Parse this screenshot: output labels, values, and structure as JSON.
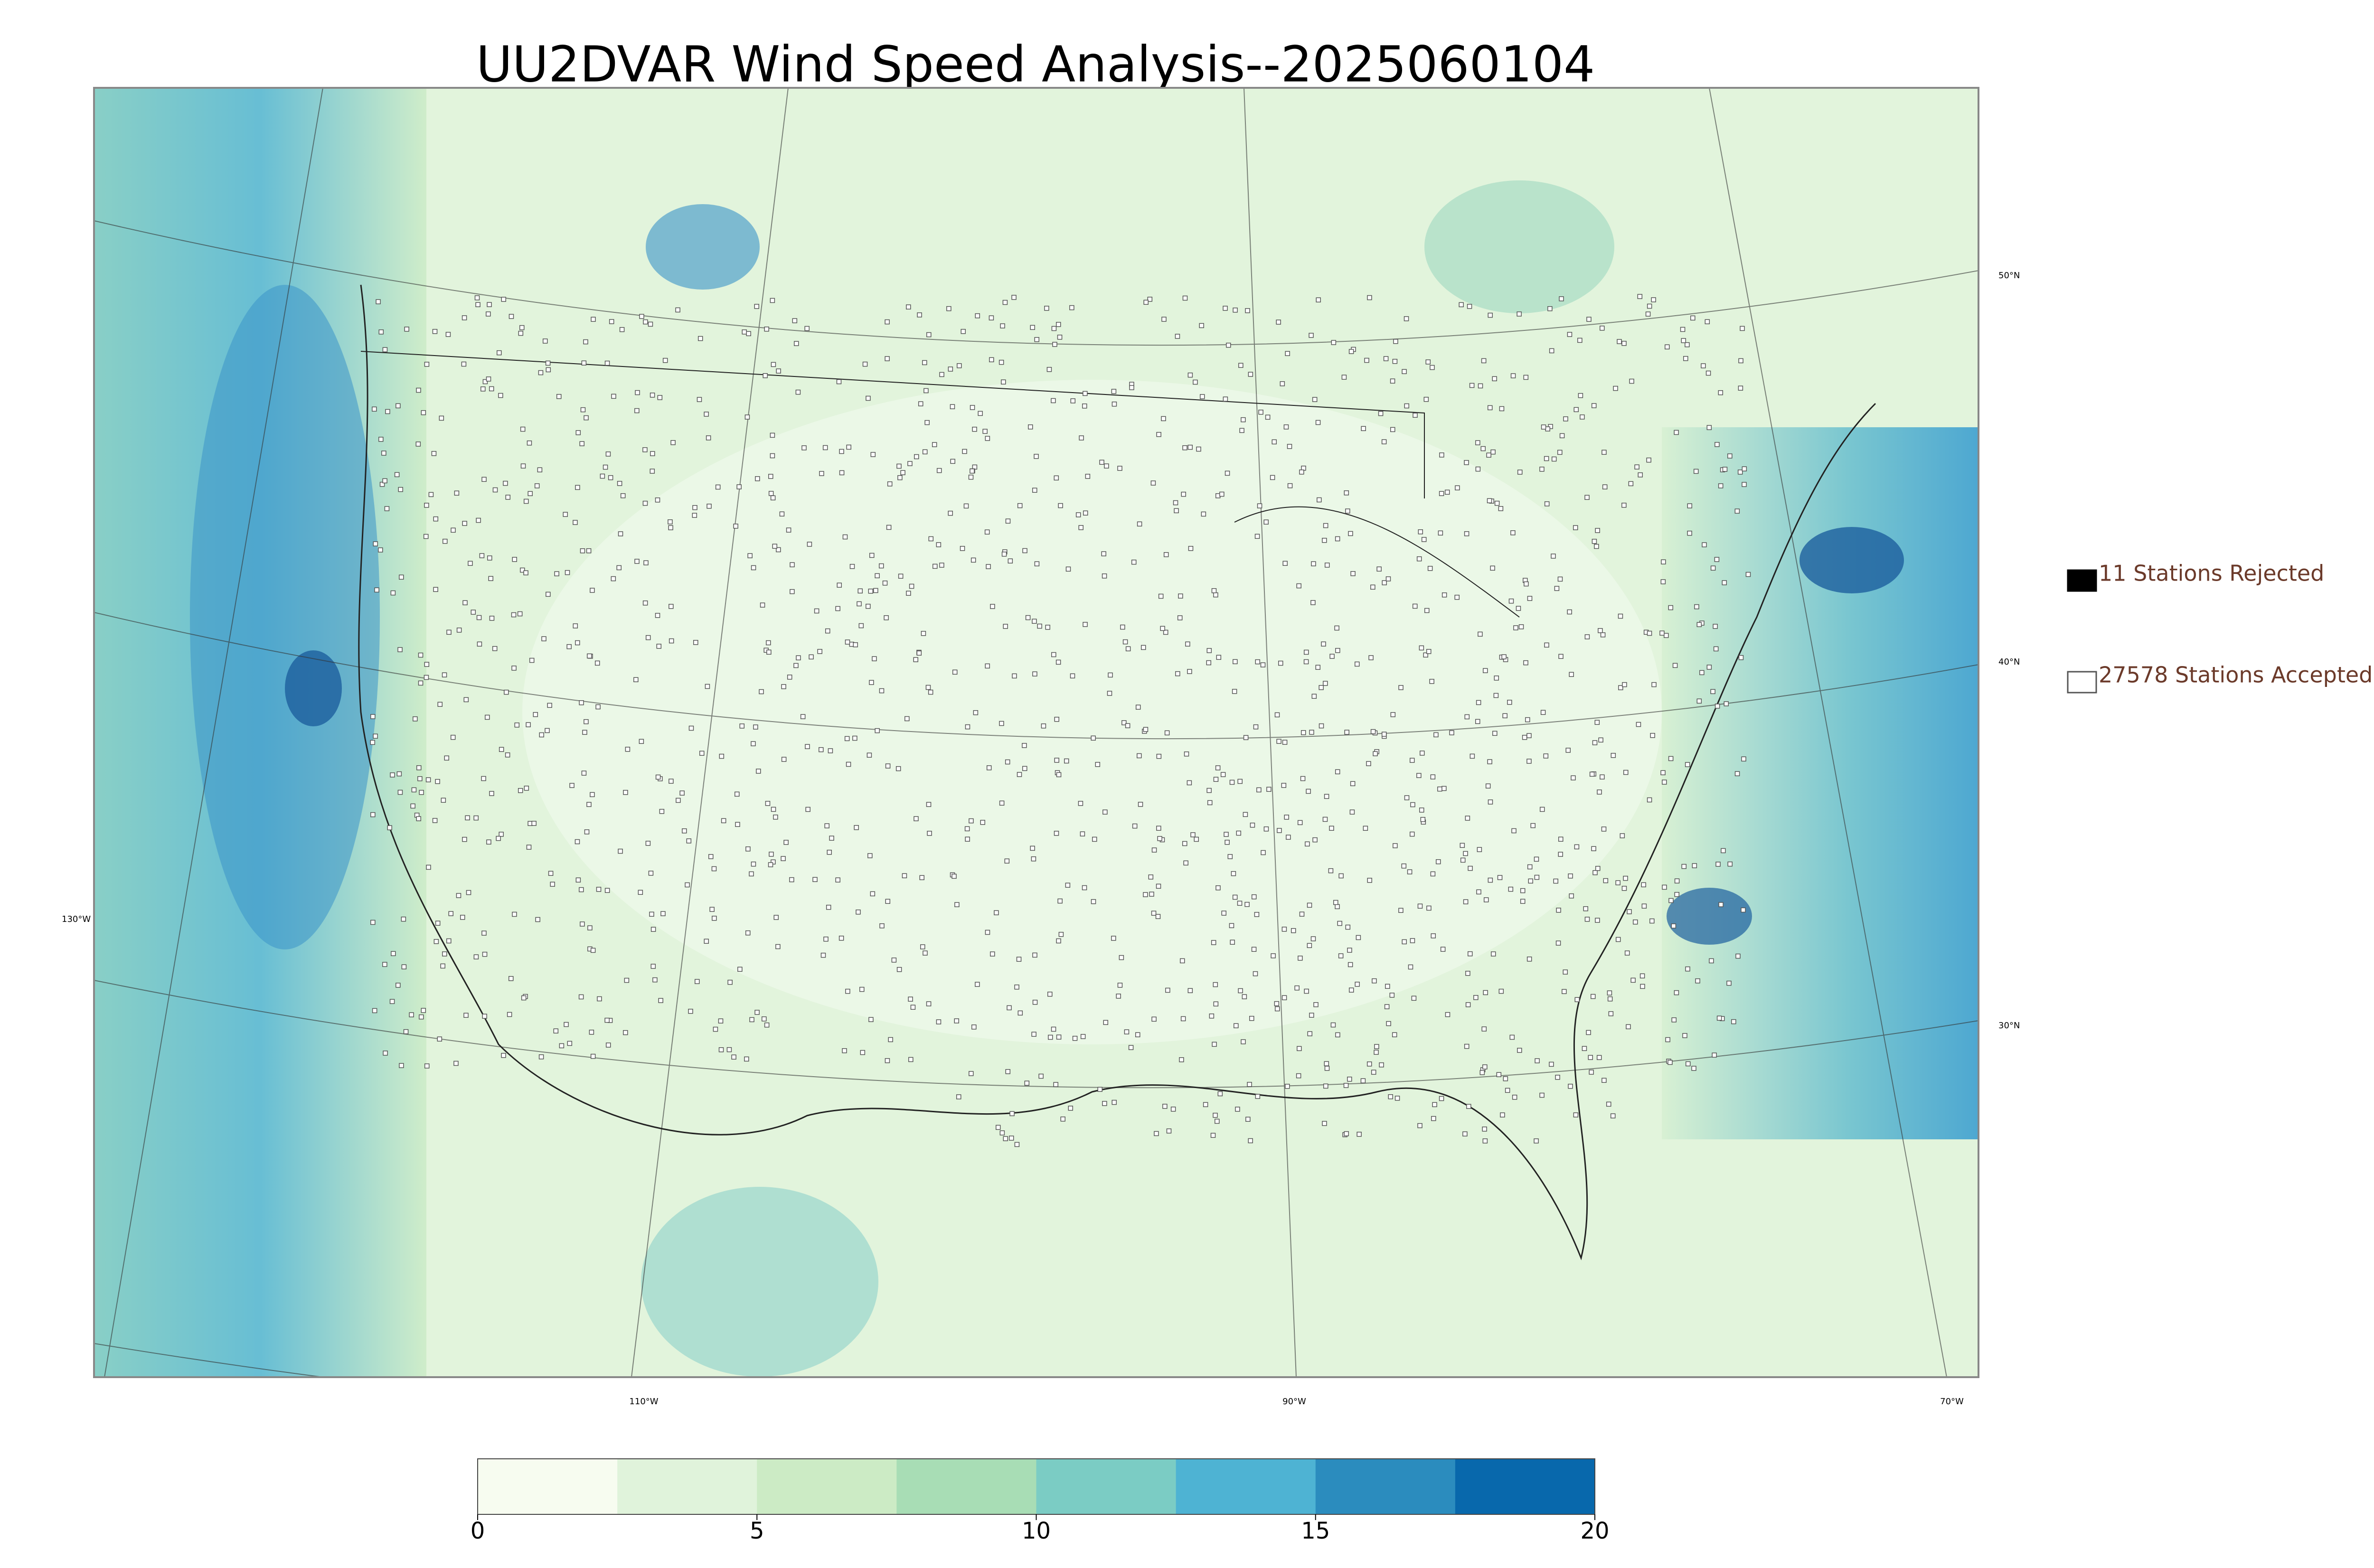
{
  "title": "UU2DVAR Wind Speed Analysis--2025060104",
  "legend": [
    {
      "label": "11 Stations Rejected",
      "marker": "filled"
    },
    {
      "label": "27578 Stations Accepted",
      "marker": "open"
    }
  ],
  "lat_labels": [
    "50°N",
    "40°N",
    "30°N"
  ],
  "lon_labels": [
    "130°W",
    "110°W",
    "90°W",
    "70°W"
  ],
  "colorbar": {
    "lim": [
      0,
      20
    ],
    "ticks": [
      0,
      5,
      10,
      15,
      20
    ],
    "colors": [
      "#f7fcf0",
      "#e0f3db",
      "#ccebc5",
      "#a8ddb5",
      "#7bccc4",
      "#4eb3d3",
      "#2b8cbe",
      "#0868ac"
    ]
  }
}
